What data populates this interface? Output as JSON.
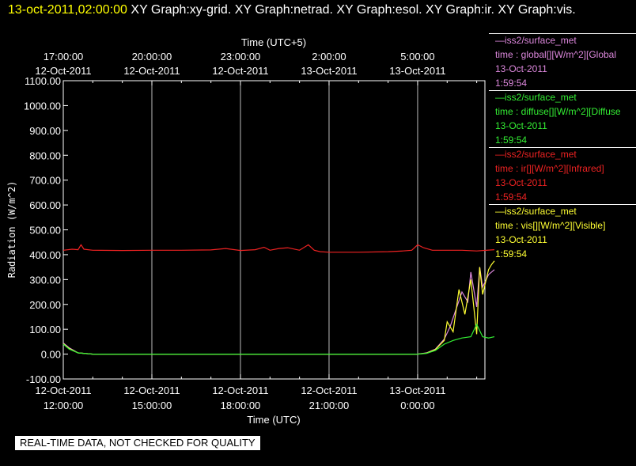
{
  "header": {
    "timestamp": "13-oct-2011,02:00:00",
    "graphs": "XY Graph:xy-grid.  XY Graph:netrad.  XY Graph:esol.  XY Graph:ir.  XY Graph:vis."
  },
  "status_text": "REAL-TIME DATA, NOT CHECKED FOR QUALITY",
  "legend": [
    {
      "source": "—iss2/surface_met",
      "desc": "time : global[][W/m^2][Global",
      "date": "13-Oct-2011",
      "time": "1:59:54",
      "color": "#dd88dd"
    },
    {
      "source": "—iss2/surface_met",
      "desc": "time : diffuse[][W/m^2][Diffuse",
      "date": "13-Oct-2011",
      "time": "1:59:54",
      "color": "#33ee33"
    },
    {
      "source": "—iss2/surface_met",
      "desc": "time : ir[][W/m^2][Infrared]",
      "date": "13-Oct-2011",
      "time": "1:59:54",
      "color": "#ee2222"
    },
    {
      "source": "—iss2/surface_met",
      "desc": "time : vis[][W/m^2][Visible]",
      "date": "13-Oct-2011",
      "time": "1:59:54",
      "color": "#ffff33"
    }
  ],
  "chart_data": {
    "type": "line",
    "xlabel": "Time (UTC)",
    "top_xlabel": "Time (UTC+5)",
    "ylabel": "Radiation (W/m^2)",
    "ylim": [
      -100,
      1100
    ],
    "xlim_hours": [
      0,
      14.6
    ],
    "grid": "vertical",
    "yticks": [
      "1100.00",
      "1000.00",
      "900.00",
      "800.00",
      "700.00",
      "600.00",
      "500.00",
      "400.00",
      "300.00",
      "200.00",
      "100.00",
      "0.00",
      "-100.00"
    ],
    "x_ticks": [
      {
        "date": "12-Oct-2011",
        "time": "12:00:00"
      },
      {
        "date": "12-Oct-2011",
        "time": "15:00:00"
      },
      {
        "date": "12-Oct-2011",
        "time": "18:00:00"
      },
      {
        "date": "12-Oct-2011",
        "time": "21:00:00"
      },
      {
        "date": "13-Oct-2011",
        "time": "0:00:00"
      }
    ],
    "top_ticks": [
      {
        "time": "17:00:00",
        "date": "12-Oct-2011"
      },
      {
        "time": "20:00:00",
        "date": "12-Oct-2011"
      },
      {
        "time": "23:00:00",
        "date": "12-Oct-2011"
      },
      {
        "time": "2:00:00",
        "date": "13-Oct-2011"
      },
      {
        "time": "5:00:00",
        "date": "13-Oct-2011"
      }
    ],
    "series": [
      {
        "key": "ir",
        "color": "#ee2222",
        "hours": [
          0,
          0.3,
          0.5,
          0.6,
          0.7,
          1,
          2,
          3,
          4,
          5,
          5.5,
          6,
          6.5,
          6.8,
          7,
          7.3,
          7.6,
          8,
          8.3,
          8.5,
          8.7,
          9,
          10,
          11,
          11.5,
          11.8,
          12,
          12.2,
          12.5,
          13,
          13.5,
          14,
          14.6
        ],
        "values": [
          418,
          422,
          420,
          440,
          422,
          418,
          417,
          418,
          418,
          419,
          425,
          417,
          420,
          430,
          418,
          425,
          428,
          418,
          440,
          418,
          412,
          410,
          410,
          412,
          415,
          418,
          440,
          428,
          418,
          418,
          418,
          415,
          420
        ]
      },
      {
        "key": "global",
        "color": "#dd88dd",
        "hours": [
          0,
          0.2,
          0.5,
          1,
          2,
          3,
          5,
          7,
          9,
          11,
          12,
          12.3,
          12.6,
          12.9,
          13.1,
          13.3,
          13.5,
          13.7,
          13.8,
          14,
          14.1,
          14.2,
          14.4,
          14.5,
          14.6
        ],
        "values": [
          45,
          25,
          5,
          0,
          0,
          0,
          0,
          0,
          0,
          0,
          0,
          5,
          20,
          60,
          110,
          180,
          250,
          210,
          330,
          190,
          350,
          270,
          320,
          330,
          340
        ]
      },
      {
        "key": "vis",
        "color": "#ffff33",
        "hours": [
          0,
          0.2,
          0.5,
          1,
          2,
          3,
          5,
          7,
          9,
          11,
          12,
          12.3,
          12.6,
          12.9,
          13,
          13.2,
          13.4,
          13.6,
          13.8,
          14,
          14.1,
          14.2,
          14.4,
          14.5,
          14.6
        ],
        "values": [
          42,
          22,
          5,
          0,
          0,
          0,
          0,
          0,
          0,
          0,
          0,
          4,
          18,
          55,
          130,
          90,
          260,
          160,
          300,
          80,
          350,
          240,
          340,
          360,
          375
        ]
      },
      {
        "key": "diffuse",
        "color": "#33ee33",
        "hours": [
          0,
          0.2,
          0.5,
          1,
          2,
          3,
          5,
          7,
          9,
          11,
          12,
          12.3,
          12.6,
          12.9,
          13.2,
          13.5,
          13.8,
          14,
          14.2,
          14.4,
          14.6
        ],
        "values": [
          40,
          20,
          5,
          0,
          0,
          0,
          0,
          0,
          0,
          0,
          0,
          3,
          15,
          40,
          55,
          65,
          70,
          120,
          70,
          65,
          70
        ]
      }
    ]
  }
}
